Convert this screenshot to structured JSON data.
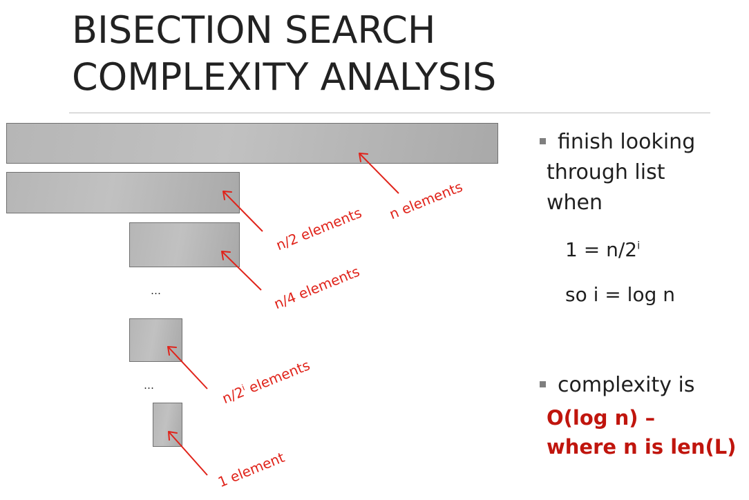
{
  "title": {
    "line1": "BISECTION SEARCH",
    "line2": "COMPLEXITY ANALYSIS"
  },
  "diagram": {
    "labels": {
      "n": "n elements",
      "n2": "n/2 elements",
      "n4": "n/4 elements",
      "n2i_prefix": "n/2",
      "n2i_sup": "i",
      "n2i_suffix": " elements",
      "one": "1 element"
    },
    "ellipsis_1": "…",
    "ellipsis_2": "…"
  },
  "bullets": {
    "first": {
      "line1": "finish looking",
      "line2": "through list",
      "line3": "when"
    },
    "formula1_prefix": "1 = n/2",
    "formula1_sup": "i",
    "formula2": "so i = log n",
    "second": {
      "line1": "complexity is",
      "emph_line1": "O(log n) –",
      "emph_line2": "where n is len(L)"
    }
  },
  "colors": {
    "accent_red": "#e0231a",
    "emphasis_red": "#c0150d",
    "bar_gray": "#b8b8b8",
    "bar_border": "#6f6f6f",
    "bullet_gray": "#7f7f7f"
  }
}
